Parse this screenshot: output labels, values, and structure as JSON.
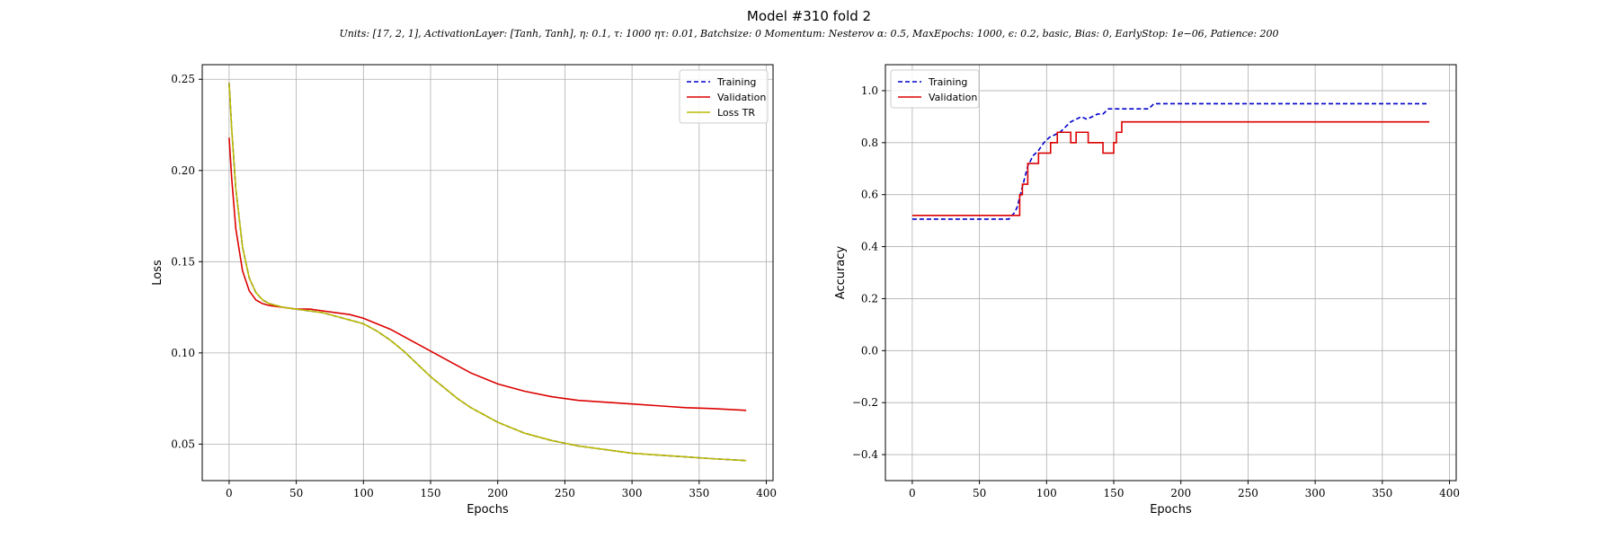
{
  "figure": {
    "title": "Model #310 fold 2",
    "subtitle": "Units: [17, 2, 1], ActivationLayer: [Tanh, Tanh], η: 0.1, τ: 1000 ητ: 0.01, Batchsize: 0 Momentum: Nesterov α: 0.5, MaxEpochs: 1000, ϵ: 0.2, basic, Bias: 0, EarlyStop: 1e−06, Patience: 200"
  },
  "chart_data": [
    {
      "type": "line",
      "xlabel": "Epochs",
      "ylabel": "Loss",
      "xlim": [
        -20,
        405
      ],
      "ylim": [
        0.03,
        0.258
      ],
      "xticks": [
        0,
        50,
        100,
        150,
        200,
        250,
        300,
        350,
        400
      ],
      "yticks": [
        0.05,
        0.1,
        0.15,
        0.2,
        0.25
      ],
      "ytick_labels": [
        "0.05",
        "0.10",
        "0.15",
        "0.20",
        "0.25"
      ],
      "grid": true,
      "legend_position": "top-right",
      "series": [
        {
          "name": "Training",
          "color": "#0000cc",
          "style": "dashed",
          "x": [
            0,
            2,
            5,
            10,
            15,
            20,
            25,
            30,
            40,
            50,
            60,
            70,
            80,
            90,
            100,
            110,
            120,
            130,
            140,
            150,
            160,
            170,
            180,
            190,
            200,
            220,
            240,
            260,
            280,
            300,
            320,
            340,
            360,
            385
          ],
          "y": [
            0.248,
            0.222,
            0.19,
            0.158,
            0.141,
            0.133,
            0.129,
            0.127,
            0.125,
            0.124,
            0.123,
            0.122,
            0.12,
            0.118,
            0.116,
            0.112,
            0.107,
            0.101,
            0.094,
            0.087,
            0.081,
            0.075,
            0.07,
            0.066,
            0.062,
            0.056,
            0.052,
            0.049,
            0.047,
            0.045,
            0.044,
            0.043,
            0.042,
            0.041
          ]
        },
        {
          "name": "Validation",
          "color": "#dd0000",
          "style": "solid",
          "x": [
            0,
            2,
            5,
            10,
            15,
            20,
            25,
            30,
            40,
            50,
            60,
            70,
            80,
            90,
            100,
            110,
            120,
            130,
            140,
            150,
            160,
            170,
            180,
            190,
            200,
            220,
            240,
            260,
            280,
            300,
            320,
            340,
            360,
            385
          ],
          "y": [
            0.218,
            0.195,
            0.168,
            0.145,
            0.134,
            0.129,
            0.127,
            0.126,
            0.125,
            0.124,
            0.124,
            0.123,
            0.122,
            0.121,
            0.119,
            0.116,
            0.113,
            0.109,
            0.105,
            0.101,
            0.097,
            0.093,
            0.089,
            0.086,
            0.083,
            0.079,
            0.076,
            0.074,
            0.073,
            0.072,
            0.071,
            0.07,
            0.0695,
            0.0685
          ]
        },
        {
          "name": "Loss TR",
          "color": "#bbbb00",
          "style": "solid",
          "x": [
            0,
            2,
            5,
            10,
            15,
            20,
            25,
            30,
            40,
            50,
            60,
            70,
            80,
            90,
            100,
            110,
            120,
            130,
            140,
            150,
            160,
            170,
            180,
            190,
            200,
            220,
            240,
            260,
            280,
            300,
            320,
            340,
            360,
            385
          ],
          "y": [
            0.248,
            0.222,
            0.19,
            0.158,
            0.141,
            0.133,
            0.129,
            0.127,
            0.125,
            0.124,
            0.123,
            0.122,
            0.12,
            0.118,
            0.116,
            0.112,
            0.107,
            0.101,
            0.094,
            0.087,
            0.081,
            0.075,
            0.07,
            0.066,
            0.062,
            0.056,
            0.052,
            0.049,
            0.047,
            0.045,
            0.044,
            0.043,
            0.042,
            0.041
          ]
        }
      ]
    },
    {
      "type": "line",
      "xlabel": "Epochs",
      "ylabel": "Accuracy",
      "xlim": [
        -20,
        405
      ],
      "ylim": [
        -0.5,
        1.1
      ],
      "xticks": [
        0,
        50,
        100,
        150,
        200,
        250,
        300,
        350,
        400
      ],
      "yticks": [
        -0.4,
        -0.2,
        0.0,
        0.2,
        0.4,
        0.6,
        0.8,
        1.0
      ],
      "ytick_labels": [
        "−0.4",
        "−0.2",
        "0.0",
        "0.2",
        "0.4",
        "0.6",
        "0.8",
        "1.0"
      ],
      "grid": true,
      "legend_position": "top-left",
      "series": [
        {
          "name": "Training",
          "color": "#0000cc",
          "style": "dashed",
          "x": [
            0,
            72,
            76,
            78,
            80,
            82,
            84,
            86,
            88,
            90,
            94,
            98,
            102,
            106,
            110,
            114,
            118,
            122,
            126,
            130,
            134,
            138,
            142,
            146,
            176,
            180,
            385
          ],
          "y": [
            0.506,
            0.506,
            0.53,
            0.55,
            0.59,
            0.63,
            0.67,
            0.71,
            0.73,
            0.75,
            0.77,
            0.8,
            0.82,
            0.83,
            0.84,
            0.86,
            0.88,
            0.89,
            0.9,
            0.89,
            0.9,
            0.91,
            0.91,
            0.93,
            0.93,
            0.95,
            0.95
          ],
          "step": false
        },
        {
          "name": "Validation",
          "color": "#dd0000",
          "style": "solid",
          "x": [
            0,
            80,
            80,
            82,
            82,
            86,
            86,
            94,
            94,
            103,
            103,
            108,
            108,
            118,
            118,
            122,
            122,
            131,
            131,
            142,
            142,
            150,
            150,
            152,
            152,
            156,
            156,
            162,
            162,
            168,
            168,
            385
          ],
          "y": [
            0.52,
            0.52,
            0.6,
            0.6,
            0.64,
            0.64,
            0.72,
            0.72,
            0.76,
            0.76,
            0.8,
            0.8,
            0.84,
            0.84,
            0.8,
            0.8,
            0.84,
            0.84,
            0.8,
            0.8,
            0.76,
            0.76,
            0.8,
            0.8,
            0.84,
            0.84,
            0.88,
            0.88,
            0.88,
            0.88,
            0.88,
            0.88
          ]
        }
      ]
    }
  ]
}
